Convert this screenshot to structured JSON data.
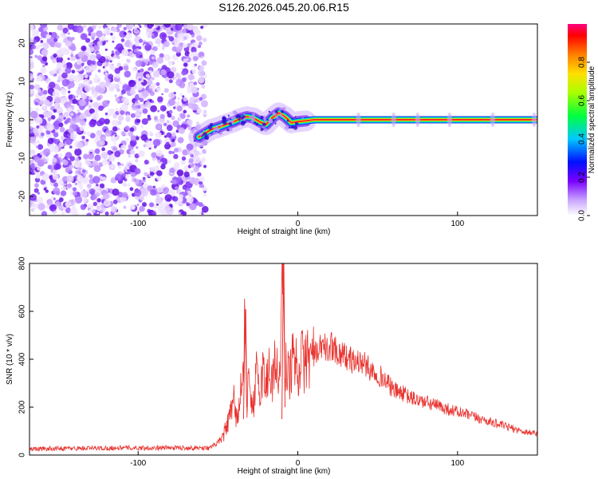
{
  "title": "S126.2026.045.20.06.R15",
  "colors": {
    "trace": "#e8332f",
    "frame": "#000000",
    "ridge": "#ff2a2a",
    "band_outline": "#1a33d9"
  },
  "chart_data": [
    {
      "type": "heatmap",
      "name": "spectrogram",
      "xlabel": "Height of straight line (km)",
      "ylabel": "Frequency (Hz)",
      "xlim": [
        -168,
        150
      ],
      "ylim": [
        -25,
        25
      ],
      "x_ticks": [
        -100,
        0,
        100
      ],
      "x_tick_labels": [
        "-100",
        "0",
        "100"
      ],
      "y_ticks": [
        -20,
        -10,
        0,
        10,
        20
      ],
      "y_tick_labels": [
        "-20",
        "-10",
        "0",
        "10",
        "20"
      ],
      "noise_region_x": [
        -168,
        -60
      ],
      "signal_ridge": {
        "x": [
          -62,
          -58,
          -54,
          -50,
          -45,
          -40,
          -36,
          -32,
          -28,
          -24,
          -20,
          -16,
          -12,
          -8,
          -4,
          0,
          5,
          10,
          150
        ],
        "frequency_hz": [
          -4.5,
          -3.5,
          -2.5,
          -2.0,
          -1.2,
          -0.5,
          0.3,
          0.8,
          0.5,
          -0.5,
          -1.3,
          0.5,
          1.8,
          0.8,
          -0.8,
          -0.5,
          -0.3,
          0.0,
          0.0
        ]
      },
      "colorbar": {
        "label": "Normalized spectral amplitude",
        "range": [
          0.0,
          1.0
        ],
        "ticks": [
          0.0,
          0.2,
          0.4,
          0.6,
          0.8
        ],
        "tick_labels": [
          "0.0",
          "0.2",
          "0.4",
          "0.6",
          "0.8"
        ]
      }
    },
    {
      "type": "line",
      "name": "snr",
      "xlabel": "Height of straight line (km)",
      "ylabel": "SNR (10 * v/v)",
      "xlim": [
        -168,
        150
      ],
      "ylim": [
        0,
        800
      ],
      "x_ticks": [
        -100,
        0,
        100
      ],
      "x_tick_labels": [
        "-100",
        "0",
        "100"
      ],
      "y_ticks": [
        0,
        200,
        400,
        600,
        800
      ],
      "y_tick_labels": [
        "0",
        "200",
        "400",
        "600",
        "800"
      ],
      "series": [
        {
          "name": "SNR",
          "x": [
            -168,
            -150,
            -130,
            -110,
            -90,
            -70,
            -55,
            -48,
            -45,
            -42,
            -40,
            -38,
            -36,
            -34,
            -33,
            -32,
            -30,
            -28,
            -26,
            -24,
            -22,
            -20,
            -18,
            -16,
            -14,
            -12,
            -10,
            -9,
            -8,
            -6,
            -4,
            -2,
            0,
            2,
            4,
            6,
            8,
            10,
            12,
            14,
            16,
            18,
            20,
            22,
            24,
            26,
            28,
            30,
            35,
            40,
            45,
            50,
            55,
            60,
            65,
            70,
            80,
            90,
            100,
            110,
            120,
            130,
            140,
            150
          ],
          "values": [
            25,
            28,
            28,
            30,
            30,
            30,
            30,
            60,
            110,
            170,
            220,
            140,
            260,
            330,
            610,
            230,
            300,
            200,
            330,
            250,
            360,
            280,
            380,
            300,
            420,
            270,
            610,
            800,
            380,
            330,
            370,
            410,
            360,
            400,
            380,
            420,
            400,
            430,
            410,
            440,
            470,
            430,
            450,
            460,
            440,
            420,
            430,
            410,
            390,
            390,
            360,
            340,
            310,
            270,
            260,
            240,
            220,
            200,
            180,
            160,
            140,
            120,
            100,
            90
          ]
        }
      ]
    }
  ]
}
